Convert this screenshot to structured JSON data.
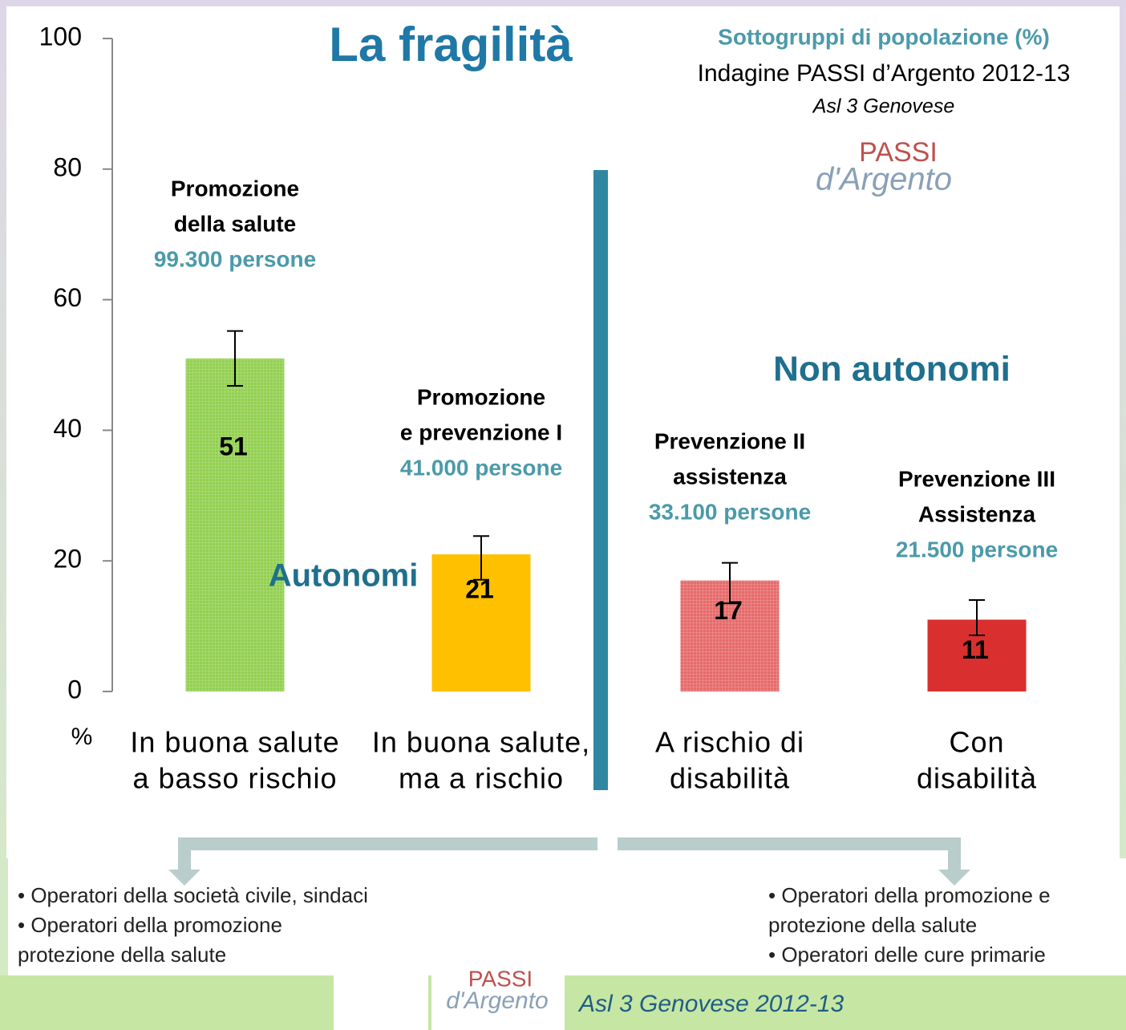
{
  "chart_data": {
    "type": "bar",
    "title": "La fragilità",
    "y_label": "%",
    "categories": [
      [
        "In buona salute",
        "a basso rischio"
      ],
      [
        "In buona salute,",
        "ma a rischio"
      ],
      [
        "A rischio di",
        "disabilità"
      ],
      [
        "Con",
        "disabilità"
      ]
    ],
    "values": [
      51,
      21,
      17,
      11
    ],
    "error_low": [
      46.8,
      17.1,
      13.5,
      8.6
    ],
    "error_high": [
      55.2,
      23.8,
      19.7,
      14
    ],
    "colors": [
      "#92d050",
      "#ffc000",
      "#e66a6a",
      "#d9302f"
    ],
    "patterned": [
      true,
      false,
      true,
      false
    ],
    "ylim": [
      0,
      100
    ],
    "yticks": [
      0,
      20,
      40,
      60,
      80,
      100
    ],
    "group_labels": [
      {
        "lines": [
          "Promozione",
          "della salute"
        ],
        "count": "99.300 persone"
      },
      {
        "lines": [
          "Promozione",
          "e prevenzione I"
        ],
        "count": "41.000 persone"
      },
      {
        "lines": [
          "Prevenzione II",
          "assistenza"
        ],
        "count": "33.100 persone"
      },
      {
        "lines": [
          "Prevenzione III",
          "Assistenza"
        ],
        "count": "21.500 persone"
      }
    ],
    "annotations": {
      "left": "Autonomi",
      "right": "Non autonomi"
    }
  },
  "header": {
    "subtitle": "Sottogruppi di popolazione  (%)",
    "survey": "Indagine PASSI d’Argento 2012-13",
    "area": "Asl 3 Genovese"
  },
  "logo": {
    "top": "PASSI",
    "bottom": "d'Argento"
  },
  "notes": {
    "left": [
      "• Operatori della società civile, sindaci",
      "• Operatori della promozione",
      "protezione della salute"
    ],
    "right": [
      "•  Operatori della promozione e",
      "protezione della salute",
      "• Operatori delle cure primarie"
    ]
  },
  "footer": "Asl 3 Genovese 2012-13"
}
